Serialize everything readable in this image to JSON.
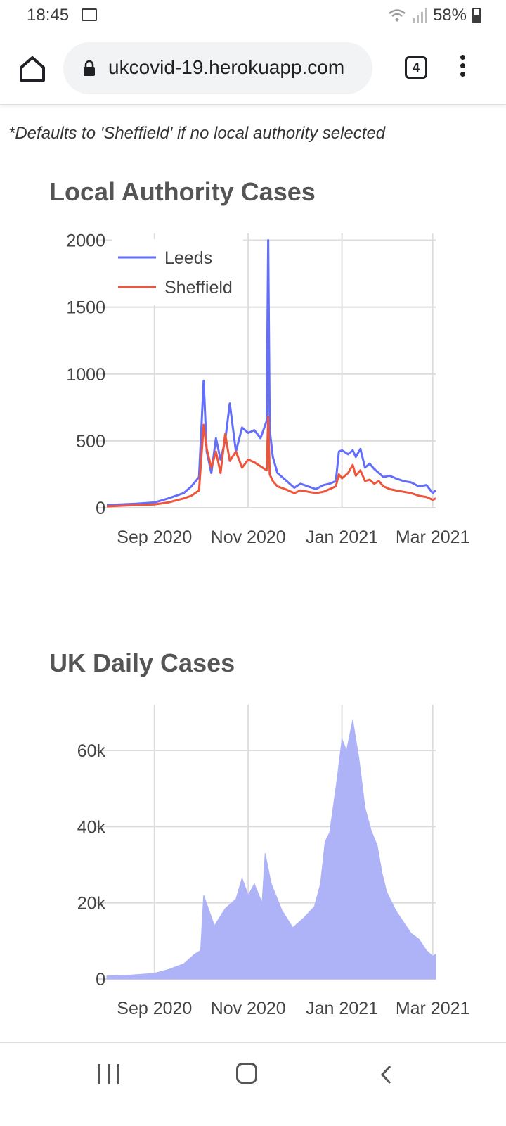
{
  "status_bar": {
    "time": "18:45",
    "battery": "58%"
  },
  "browser": {
    "url": "ukcovid-19.herokuapp.com",
    "tab_count": "4"
  },
  "note": "*Defaults to 'Sheffield' if no local authority selected",
  "charts": {
    "local": {
      "title": "Local Authority Cases"
    },
    "uk": {
      "title": "UK Daily Cases"
    }
  },
  "chart_data": [
    {
      "type": "line",
      "title": "Local Authority Cases",
      "x_range": [
        "2020-08-01",
        "2021-03-03"
      ],
      "ylim": [
        0,
        2050
      ],
      "x_ticks": [
        {
          "date": "2020-09-01",
          "label": "Sep 2020"
        },
        {
          "date": "2020-11-01",
          "label": "Nov 2020"
        },
        {
          "date": "2021-01-01",
          "label": "Jan 2021"
        },
        {
          "date": "2021-03-01",
          "label": "Mar 2021"
        }
      ],
      "y_ticks": [
        {
          "value": 0,
          "label": "0"
        },
        {
          "value": 500,
          "label": "500"
        },
        {
          "value": 1000,
          "label": "1000"
        },
        {
          "value": 1500,
          "label": "1500"
        },
        {
          "value": 2000,
          "label": "2000"
        }
      ],
      "grid": true,
      "legend": "top-left",
      "series": [
        {
          "name": "Leeds",
          "color": "#636efa",
          "x": [
            "2020-08-01",
            "2020-08-10",
            "2020-08-20",
            "2020-09-01",
            "2020-09-10",
            "2020-09-20",
            "2020-09-25",
            "2020-09-30",
            "2020-10-03",
            "2020-10-05",
            "2020-10-08",
            "2020-10-11",
            "2020-10-14",
            "2020-10-17",
            "2020-10-20",
            "2020-10-24",
            "2020-10-28",
            "2020-11-01",
            "2020-11-05",
            "2020-11-09",
            "2020-11-13",
            "2020-11-14",
            "2020-11-15",
            "2020-11-17",
            "2020-11-20",
            "2020-11-25",
            "2020-12-01",
            "2020-12-05",
            "2020-12-10",
            "2020-12-15",
            "2020-12-20",
            "2020-12-24",
            "2020-12-28",
            "2020-12-30",
            "2021-01-01",
            "2021-01-05",
            "2021-01-08",
            "2021-01-10",
            "2021-01-13",
            "2021-01-16",
            "2021-01-19",
            "2021-01-22",
            "2021-01-25",
            "2021-01-28",
            "2021-02-01",
            "2021-02-05",
            "2021-02-10",
            "2021-02-15",
            "2021-02-20",
            "2021-02-25",
            "2021-03-01",
            "2021-03-03"
          ],
          "y": [
            20,
            25,
            30,
            40,
            70,
            110,
            160,
            230,
            950,
            420,
            260,
            520,
            360,
            500,
            780,
            420,
            600,
            560,
            580,
            520,
            650,
            2000,
            580,
            380,
            260,
            210,
            150,
            180,
            160,
            140,
            170,
            180,
            200,
            420,
            430,
            400,
            430,
            380,
            440,
            300,
            330,
            290,
            260,
            230,
            240,
            220,
            200,
            190,
            160,
            170,
            110,
            130
          ]
        },
        {
          "name": "Sheffield",
          "color": "#ef553b",
          "x": [
            "2020-08-01",
            "2020-08-10",
            "2020-08-20",
            "2020-09-01",
            "2020-09-10",
            "2020-09-20",
            "2020-09-25",
            "2020-09-30",
            "2020-10-03",
            "2020-10-05",
            "2020-10-08",
            "2020-10-11",
            "2020-10-14",
            "2020-10-17",
            "2020-10-20",
            "2020-10-24",
            "2020-10-28",
            "2020-11-01",
            "2020-11-05",
            "2020-11-09",
            "2020-11-13",
            "2020-11-14",
            "2020-11-15",
            "2020-11-17",
            "2020-11-20",
            "2020-11-25",
            "2020-12-01",
            "2020-12-05",
            "2020-12-10",
            "2020-12-15",
            "2020-12-20",
            "2020-12-24",
            "2020-12-28",
            "2020-12-30",
            "2021-01-01",
            "2021-01-05",
            "2021-01-08",
            "2021-01-10",
            "2021-01-13",
            "2021-01-16",
            "2021-01-19",
            "2021-01-22",
            "2021-01-25",
            "2021-01-28",
            "2021-02-01",
            "2021-02-05",
            "2021-02-10",
            "2021-02-15",
            "2021-02-20",
            "2021-02-25",
            "2021-03-01",
            "2021-03-03"
          ],
          "y": [
            10,
            15,
            20,
            25,
            40,
            70,
            90,
            130,
            620,
            440,
            300,
            420,
            260,
            550,
            350,
            420,
            300,
            360,
            340,
            310,
            280,
            680,
            250,
            200,
            160,
            140,
            110,
            130,
            120,
            110,
            120,
            140,
            160,
            250,
            220,
            260,
            320,
            240,
            280,
            200,
            210,
            180,
            200,
            160,
            140,
            130,
            120,
            110,
            90,
            80,
            60,
            70
          ]
        }
      ]
    },
    {
      "type": "area",
      "title": "UK Daily Cases",
      "x_range": [
        "2020-08-01",
        "2021-03-03"
      ],
      "ylim": [
        0,
        72000
      ],
      "x_ticks": [
        {
          "date": "2020-09-01",
          "label": "Sep 2020"
        },
        {
          "date": "2020-11-01",
          "label": "Nov 2020"
        },
        {
          "date": "2021-01-01",
          "label": "Jan 2021"
        },
        {
          "date": "2021-03-01",
          "label": "Mar 2021"
        }
      ],
      "y_ticks": [
        {
          "value": 0,
          "label": "0"
        },
        {
          "value": 20000,
          "label": "20k"
        },
        {
          "value": 40000,
          "label": "40k"
        },
        {
          "value": 60000,
          "label": "60k"
        }
      ],
      "grid": true,
      "series": [
        {
          "color": "#aeb2f7",
          "x": [
            "2020-08-01",
            "2020-08-15",
            "2020-09-01",
            "2020-09-10",
            "2020-09-20",
            "2020-09-27",
            "2020-10-01",
            "2020-10-03",
            "2020-10-10",
            "2020-10-17",
            "2020-10-24",
            "2020-10-28",
            "2020-11-01",
            "2020-11-05",
            "2020-11-10",
            "2020-11-12",
            "2020-11-16",
            "2020-11-23",
            "2020-11-30",
            "2020-12-07",
            "2020-12-14",
            "2020-12-18",
            "2020-12-21",
            "2020-12-24",
            "2020-12-29",
            "2021-01-01",
            "2021-01-04",
            "2021-01-08",
            "2021-01-12",
            "2021-01-16",
            "2021-01-20",
            "2021-01-24",
            "2021-01-27",
            "2021-01-30",
            "2021-02-05",
            "2021-02-10",
            "2021-02-15",
            "2021-02-20",
            "2021-02-25",
            "2021-03-01",
            "2021-03-03"
          ],
          "y": [
            800,
            1000,
            1500,
            2500,
            4000,
            6500,
            7500,
            22000,
            14000,
            18500,
            21000,
            26500,
            22000,
            25000,
            20000,
            33000,
            25000,
            18000,
            13500,
            16000,
            19000,
            25000,
            36000,
            38500,
            53000,
            63000,
            60000,
            68000,
            58000,
            45000,
            39000,
            35000,
            28000,
            23000,
            18000,
            15000,
            12000,
            10500,
            7500,
            6000,
            6500
          ]
        }
      ]
    }
  ]
}
